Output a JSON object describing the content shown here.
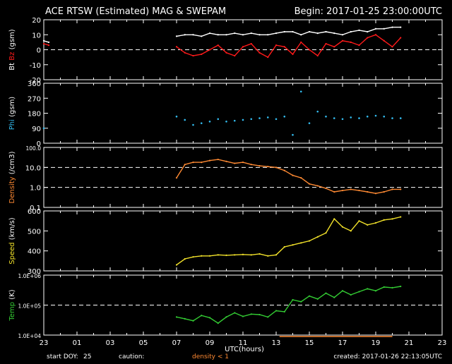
{
  "header": {
    "title": "ACE RTSW (Estimated) MAG & SWEPAM",
    "begin": "Begin: 2017-01-25 23:00:00UTC"
  },
  "footer": {
    "start_doy_label": "start DOY:",
    "start_doy_value": "25",
    "caution_label": "caution:",
    "caution_note": "density < 1",
    "created": "created: 2017-01-26 22:13:05UTC"
  },
  "colors": {
    "background": "#000000",
    "bt": "#ffffff",
    "bz": "#ff1a1a",
    "phi": "#33bbee",
    "density": "#ff8a33",
    "speed": "#f2e22a",
    "temp": "#33cc33",
    "caution": "#ff8a33"
  },
  "chart_data": {
    "x_axis": {
      "label": "UTC(hours)",
      "ticks": [
        "23",
        "01",
        "03",
        "05",
        "07",
        "09",
        "11",
        "13",
        "15",
        "17",
        "19",
        "21",
        "23"
      ],
      "range_hours": [
        0,
        24
      ]
    },
    "panels": [
      {
        "id": "mag",
        "type": "line",
        "ylabel_parts": [
          {
            "text": "Bt",
            "color": "#ffffff"
          },
          {
            "text": "Bz",
            "color": "#ff1a1a"
          }
        ],
        "ylabel_suffix": "(gsm)",
        "scale": "linear",
        "ylim": [
          -20,
          20
        ],
        "yticks": [
          20,
          10,
          0,
          -10,
          -20
        ],
        "ytick_labels": [
          "20",
          "10",
          "0",
          "-10",
          "-20"
        ],
        "ref_lines": [
          0
        ],
        "series": [
          {
            "name": "Bt",
            "color": "#ffffff",
            "x": [
              8,
              8.5,
              9,
              9.5,
              10,
              10.5,
              11,
              11.5,
              12,
              12.5,
              13,
              13.5,
              14,
              14.5,
              15,
              15.5,
              16,
              16.5,
              17,
              17.5,
              18,
              18.5,
              19,
              19.5,
              20,
              20.5,
              21,
              21.5
            ],
            "y": [
              9,
              10,
              10,
              9,
              11,
              10,
              10,
              11,
              10,
              11,
              10,
              10,
              11,
              12,
              12,
              10,
              12,
              11,
              12,
              11,
              10,
              12,
              13,
              12,
              14,
              14,
              15,
              15
            ]
          },
          {
            "name": "Bz",
            "color": "#ff1a1a",
            "x": [
              8,
              8.5,
              9,
              9.5,
              10,
              10.5,
              11,
              11.5,
              12,
              12.5,
              13,
              13.5,
              14,
              14.5,
              15,
              15.5,
              16,
              16.5,
              17,
              17.5,
              18,
              18.5,
              19,
              19.5,
              20,
              20.5,
              21,
              21.5
            ],
            "y": [
              2,
              -2,
              -4,
              -3,
              0,
              3,
              -2,
              -4,
              2,
              4,
              -2,
              -5,
              3,
              2,
              -3,
              5,
              0,
              -4,
              4,
              2,
              6,
              5,
              3,
              8,
              10,
              6,
              2,
              8
            ]
          }
        ],
        "extra_series": [
          {
            "name": "Bt-start",
            "color": "#ffffff",
            "x": [
              0,
              0.3
            ],
            "y": [
              6,
              5
            ]
          },
          {
            "name": "Bz-start",
            "color": "#ff1a1a",
            "x": [
              0,
              0.3
            ],
            "y": [
              4,
              3
            ]
          }
        ]
      },
      {
        "id": "phi",
        "type": "scatter",
        "ylabel_parts": [
          {
            "text": "Phi",
            "color": "#33bbee"
          }
        ],
        "ylabel_suffix": "(gsm)",
        "scale": "linear",
        "ylim": [
          0,
          360
        ],
        "yticks": [
          360,
          270,
          180,
          90,
          0
        ],
        "ytick_labels": [
          "360",
          "270",
          "180",
          "90",
          "0"
        ],
        "ref_lines": [],
        "series": [
          {
            "name": "Phi",
            "color": "#33bbee",
            "x": [
              0,
              8,
              8.5,
              9,
              9.5,
              10,
              10.5,
              11,
              11.5,
              12,
              12.5,
              13,
              13.5,
              14,
              14.5,
              15,
              15.5,
              16,
              16.5,
              17,
              17.5,
              18,
              18.5,
              19,
              19.5,
              20,
              20.5,
              21,
              21.5
            ],
            "y": [
              90,
              160,
              140,
              110,
              120,
              130,
              145,
              130,
              135,
              140,
              145,
              150,
              155,
              145,
              160,
              50,
              310,
              120,
              190,
              160,
              150,
              145,
              155,
              150,
              160,
              165,
              160,
              150,
              150
            ]
          }
        ]
      },
      {
        "id": "density",
        "type": "line",
        "ylabel_parts": [
          {
            "text": "Density",
            "color": "#ff8a33"
          }
        ],
        "ylabel_suffix": "(/cm3)",
        "scale": "log",
        "ylim": [
          0.1,
          100
        ],
        "yticks": [
          100,
          10,
          1,
          0.1
        ],
        "ytick_labels": [
          "100.0",
          "10.0",
          "1.0",
          "0.1"
        ],
        "ref_lines": [
          10,
          1
        ],
        "series": [
          {
            "name": "Density",
            "color": "#ff8a33",
            "x": [
              8,
              8.5,
              9,
              9.5,
              10,
              10.5,
              11,
              11.5,
              12,
              12.5,
              13,
              13.5,
              14,
              14.5,
              15,
              15.5,
              16,
              16.5,
              17,
              17.5,
              18,
              18.5,
              19,
              19.5,
              20,
              20.5,
              21,
              21.5
            ],
            "y": [
              3,
              14,
              18,
              18,
              22,
              25,
              20,
              16,
              18,
              14,
              12,
              11,
              10,
              7,
              4,
              3,
              1.5,
              1.2,
              0.9,
              0.6,
              0.7,
              0.8,
              0.7,
              0.6,
              0.5,
              0.6,
              0.8,
              0.8
            ]
          }
        ]
      },
      {
        "id": "speed",
        "type": "line",
        "ylabel_parts": [
          {
            "text": "Speed",
            "color": "#f2e22a"
          }
        ],
        "ylabel_suffix": "(km/s)",
        "scale": "linear",
        "ylim": [
          300,
          600
        ],
        "yticks": [
          600,
          500,
          400,
          300
        ],
        "ytick_labels": [
          "600",
          "500",
          "400",
          "300"
        ],
        "ref_lines": [],
        "series": [
          {
            "name": "Speed",
            "color": "#f2e22a",
            "x": [
              8,
              8.5,
              9,
              9.5,
              10,
              10.5,
              11,
              11.5,
              12,
              12.5,
              13,
              13.5,
              14,
              14.5,
              15,
              15.5,
              16,
              16.5,
              17,
              17.5,
              18,
              18.5,
              19,
              19.5,
              20,
              20.5,
              21,
              21.5
            ],
            "y": [
              330,
              360,
              370,
              375,
              375,
              380,
              378,
              380,
              382,
              380,
              385,
              375,
              380,
              420,
              430,
              440,
              450,
              470,
              490,
              560,
              520,
              500,
              550,
              530,
              540,
              555,
              560,
              570
            ]
          }
        ]
      },
      {
        "id": "temp",
        "type": "line",
        "ylabel_parts": [
          {
            "text": "Temp",
            "color": "#33cc33"
          }
        ],
        "ylabel_suffix": "(K)",
        "scale": "log",
        "ylim": [
          10000,
          1000000
        ],
        "yticks": [
          1000000,
          100000,
          10000
        ],
        "ytick_labels": [
          "1.0E+06",
          "1.0E+05",
          "1.0E+04"
        ],
        "ref_lines": [
          100000
        ],
        "series": [
          {
            "name": "Temp",
            "color": "#33cc33",
            "x": [
              8,
              8.5,
              9,
              9.5,
              10,
              10.5,
              11,
              11.5,
              12,
              12.5,
              13,
              13.5,
              14,
              14.5,
              15,
              15.5,
              16,
              16.5,
              17,
              17.5,
              18,
              18.5,
              19,
              19.5,
              20,
              20.5,
              21,
              21.5
            ],
            "y": [
              40000,
              35000,
              30000,
              45000,
              38000,
              25000,
              40000,
              55000,
              42000,
              50000,
              48000,
              40000,
              65000,
              60000,
              150000,
              130000,
              200000,
              160000,
              250000,
              180000,
              300000,
              220000,
              280000,
              350000,
              300000,
              400000,
              380000,
              420000
            ]
          }
        ]
      }
    ]
  }
}
